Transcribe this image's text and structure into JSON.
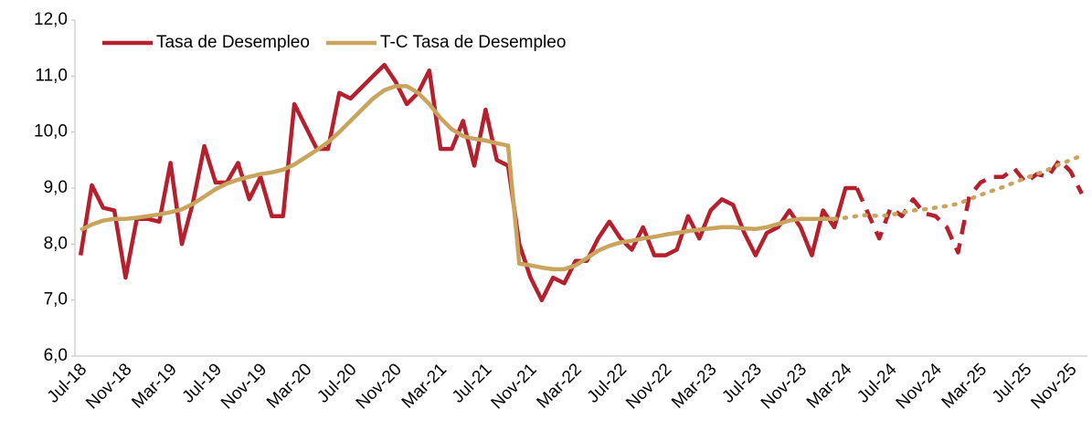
{
  "chart_data": {
    "type": "line",
    "categories": [
      "Jul-18",
      null,
      null,
      null,
      "Nov-18",
      null,
      null,
      null,
      "Mar-19",
      null,
      null,
      null,
      "Jul-19",
      null,
      null,
      null,
      "Nov-19",
      null,
      null,
      null,
      "Mar-20",
      null,
      null,
      null,
      "Jul-20",
      null,
      null,
      null,
      "Nov-20",
      null,
      null,
      null,
      "Mar-21",
      null,
      null,
      null,
      "Jul-21",
      null,
      null,
      null,
      "Nov-21",
      null,
      null,
      null,
      "Mar-22",
      null,
      null,
      null,
      "Jul-22",
      null,
      null,
      null,
      "Nov-22",
      null,
      null,
      null,
      "Mar-23",
      null,
      null,
      null,
      "Jul-23",
      null,
      null,
      null,
      "Nov-23",
      null,
      null,
      null,
      "Mar-24",
      null,
      null,
      null,
      "Jul-24",
      null,
      null,
      null,
      "Nov-24",
      null,
      null,
      null,
      "Mar-25",
      null,
      null,
      null,
      "Jul-25",
      null,
      null,
      null,
      "Nov-25",
      null
    ],
    "series": [
      {
        "name": "Tasa de Desempleo",
        "color": "#b5202e",
        "line_style": "solid",
        "projected_style": "dashed",
        "projected_from": 69,
        "values": [
          7.8,
          9.05,
          8.65,
          8.6,
          7.4,
          8.45,
          8.45,
          8.4,
          9.45,
          8.0,
          8.75,
          9.75,
          9.1,
          9.1,
          9.45,
          8.8,
          9.2,
          8.5,
          8.5,
          10.5,
          10.1,
          9.7,
          9.7,
          10.7,
          10.6,
          10.8,
          11.0,
          11.2,
          10.9,
          10.5,
          10.7,
          11.1,
          9.7,
          9.7,
          10.2,
          9.4,
          10.4,
          9.5,
          9.4,
          8.0,
          7.4,
          7.0,
          7.4,
          7.3,
          7.7,
          7.7,
          8.1,
          8.4,
          8.1,
          7.9,
          8.3,
          7.8,
          7.8,
          7.9,
          8.5,
          8.1,
          8.6,
          8.8,
          8.7,
          8.2,
          7.8,
          8.2,
          8.3,
          8.6,
          8.3,
          7.8,
          8.6,
          8.3,
          9.0,
          9.0,
          8.55,
          8.1,
          8.65,
          8.5,
          8.8,
          8.55,
          8.5,
          8.3,
          7.85,
          8.85,
          9.1,
          9.2,
          9.2,
          9.35,
          9.1,
          9.25,
          9.2,
          9.5,
          9.3,
          8.9
        ]
      },
      {
        "name": "T-C Tasa de Desempleo",
        "color": "#c9a45c",
        "line_style": "solid",
        "projected_style": "dotted",
        "projected_from": 67,
        "values": [
          8.25,
          8.35,
          8.42,
          8.45,
          8.45,
          8.47,
          8.5,
          8.53,
          8.57,
          8.62,
          8.72,
          8.85,
          8.98,
          9.08,
          9.15,
          9.2,
          9.25,
          9.28,
          9.33,
          9.42,
          9.55,
          9.68,
          9.82,
          10.0,
          10.2,
          10.4,
          10.6,
          10.75,
          10.82,
          10.82,
          10.7,
          10.5,
          10.25,
          10.05,
          9.93,
          9.88,
          9.85,
          9.8,
          9.76,
          7.65,
          7.62,
          7.58,
          7.55,
          7.55,
          7.62,
          7.75,
          7.88,
          7.97,
          8.03,
          8.06,
          8.1,
          8.13,
          8.17,
          8.2,
          8.23,
          8.26,
          8.28,
          8.3,
          8.3,
          8.28,
          8.27,
          8.3,
          8.36,
          8.42,
          8.45,
          8.45,
          8.45,
          8.45,
          8.47,
          8.5,
          8.52,
          8.5,
          8.52,
          8.56,
          8.6,
          8.62,
          8.65,
          8.68,
          8.72,
          8.8,
          8.88,
          8.95,
          9.02,
          9.1,
          9.18,
          9.25,
          9.33,
          9.42,
          9.5,
          9.58
        ]
      }
    ],
    "ylim": [
      6,
      12
    ],
    "yticks": [
      {
        "value": 6,
        "label": "6,0"
      },
      {
        "value": 7,
        "label": "7,0"
      },
      {
        "value": 8,
        "label": "8,0"
      },
      {
        "value": 9,
        "label": "9,0"
      },
      {
        "value": 10,
        "label": "10,0"
      },
      {
        "value": 11,
        "label": "11,0"
      },
      {
        "value": 12,
        "label": "12,0"
      }
    ],
    "grid": false,
    "legend": "top-left"
  }
}
